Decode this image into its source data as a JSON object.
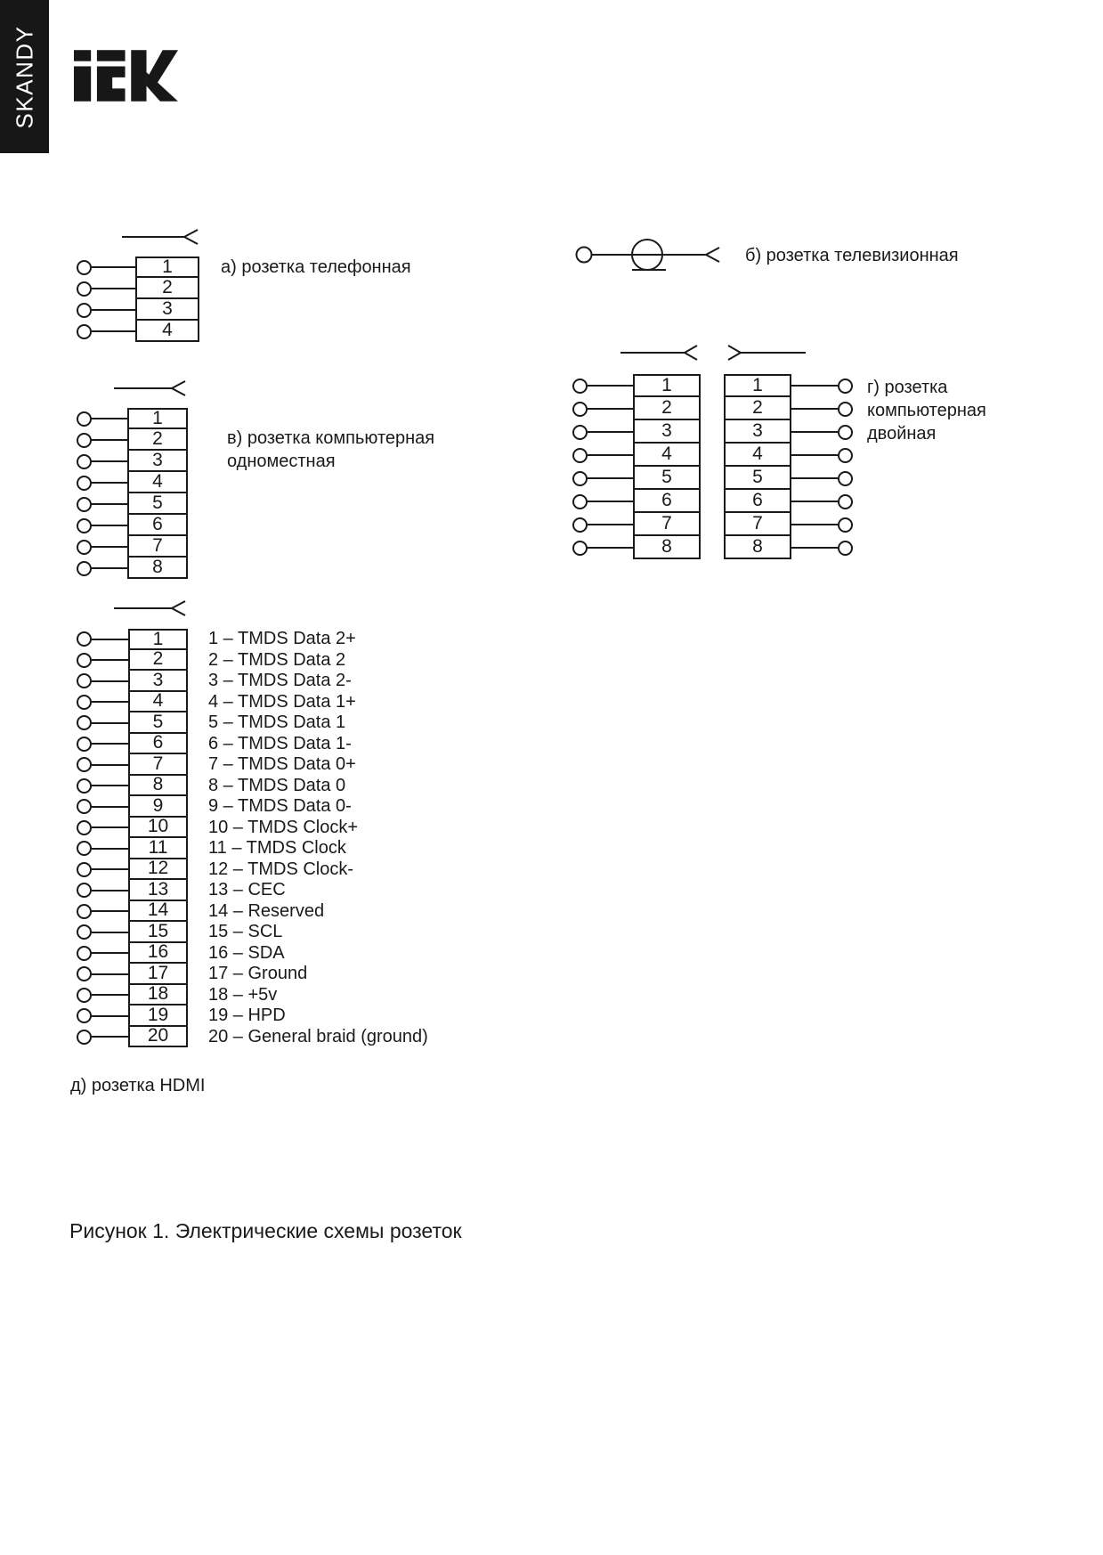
{
  "sidebar": {
    "vertical_label": "SKANDY"
  },
  "header": {
    "logo_text": "iEK"
  },
  "diagrams": {
    "telephone": {
      "label": "а) розетка телефонная",
      "pins": [
        "1",
        "2",
        "3",
        "4"
      ]
    },
    "tv": {
      "label": "б) розетка телевизионная"
    },
    "computer_single": {
      "label_lines": [
        "в) розетка компьютерная",
        "одноместная"
      ],
      "pins": [
        "1",
        "2",
        "3",
        "4",
        "5",
        "6",
        "7",
        "8"
      ]
    },
    "computer_double": {
      "label_lines": [
        "г) розетка",
        "компьютерная",
        "двойная"
      ],
      "left_pins": [
        "1",
        "2",
        "3",
        "4",
        "5",
        "6",
        "7",
        "8"
      ],
      "right_pins": [
        "1",
        "2",
        "3",
        "4",
        "5",
        "6",
        "7",
        "8"
      ]
    },
    "hdmi": {
      "label": "д) розетка HDMI",
      "pins": [
        "1",
        "2",
        "3",
        "4",
        "5",
        "6",
        "7",
        "8",
        "9",
        "10",
        "11",
        "12",
        "13",
        "14",
        "15",
        "16",
        "17",
        "18",
        "19",
        "20"
      ],
      "pin_descriptions": [
        "1 – TMDS Data 2+",
        "2 – TMDS Data 2",
        "3 – TMDS Data 2-",
        "4 – TMDS Data 1+",
        "5 – TMDS Data 1",
        "6 – TMDS Data 1-",
        "7 – TMDS Data 0+",
        "8 – TMDS Data 0",
        "9 – TMDS Data 0-",
        "10 – TMDS Clock+",
        "11 – TMDS Clock",
        "12 – TMDS Clock-",
        "13 – CEC",
        "14 – Reserved",
        "15 – SCL",
        "16 – SDA",
        "17 – Ground",
        "18 – +5v",
        "19 – HPD",
        "20 – General braid (ground)"
      ]
    }
  },
  "caption": "Рисунок 1. Электрические схемы розеток"
}
